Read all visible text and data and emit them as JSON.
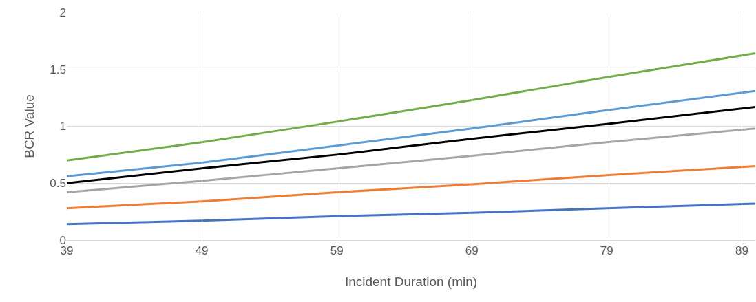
{
  "chart_data": {
    "type": "line",
    "xlabel": "Incident Duration (min)",
    "ylabel": "BCR Value",
    "x": [
      39,
      49,
      59,
      69,
      79,
      90
    ],
    "series": [
      {
        "color": "#70ad47",
        "values": [
          0.7,
          0.86,
          1.04,
          1.23,
          1.43,
          1.64
        ]
      },
      {
        "color": "#5b9bd5",
        "values": [
          0.56,
          0.68,
          0.83,
          0.98,
          1.14,
          1.31
        ]
      },
      {
        "color": "#000000",
        "values": [
          0.5,
          0.63,
          0.75,
          0.89,
          1.02,
          1.17
        ]
      },
      {
        "color": "#a5a5a5",
        "values": [
          0.42,
          0.52,
          0.63,
          0.74,
          0.86,
          0.98
        ]
      },
      {
        "color": "#ed7d31",
        "values": [
          0.28,
          0.34,
          0.42,
          0.49,
          0.57,
          0.65
        ]
      },
      {
        "color": "#4472c4",
        "values": [
          0.14,
          0.17,
          0.21,
          0.24,
          0.28,
          0.32
        ]
      }
    ],
    "xlim": [
      39,
      90
    ],
    "xticks": [
      39,
      49,
      59,
      69,
      79,
      89
    ],
    "ylim": [
      0,
      2
    ],
    "yticks": [
      0,
      0.5,
      1,
      1.5,
      2
    ],
    "grid": true,
    "marker": "none",
    "line_style": "solid"
  }
}
